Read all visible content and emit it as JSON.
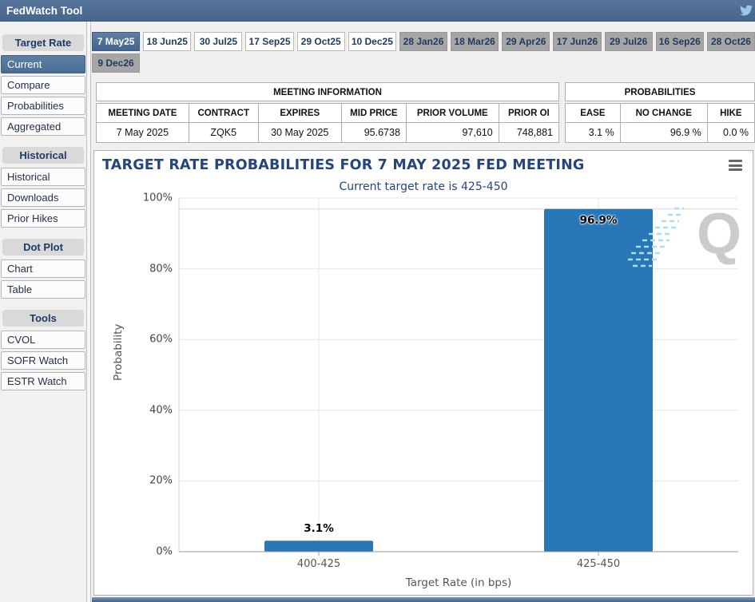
{
  "topbar": {
    "title": "FedWatch Tool",
    "twitter_icon": "twitter-bird"
  },
  "sidebar": {
    "sections": [
      {
        "header": "Target Rate",
        "items": [
          {
            "label": "Current",
            "selected": true
          },
          {
            "label": "Compare",
            "selected": false
          },
          {
            "label": "Probabilities",
            "selected": false
          },
          {
            "label": "Aggregated",
            "selected": false
          }
        ]
      },
      {
        "header": "Historical",
        "items": [
          {
            "label": "Historical",
            "selected": false
          },
          {
            "label": "Downloads",
            "selected": false
          },
          {
            "label": "Prior Hikes",
            "selected": false
          }
        ]
      },
      {
        "header": "Dot Plot",
        "items": [
          {
            "label": "Chart",
            "selected": false
          },
          {
            "label": "Table",
            "selected": false
          }
        ]
      },
      {
        "header": "Tools",
        "items": [
          {
            "label": "CVOL",
            "selected": false
          },
          {
            "label": "SOFR Watch",
            "selected": false
          },
          {
            "label": "ESTR Watch",
            "selected": false
          }
        ]
      }
    ]
  },
  "tabs": {
    "row1": [
      {
        "label": "7 May25",
        "state": "selected"
      },
      {
        "label": "18 Jun25",
        "state": "white"
      },
      {
        "label": "30 Jul25",
        "state": "white"
      },
      {
        "label": "17 Sep25",
        "state": "white"
      },
      {
        "label": "29 Oct25",
        "state": "white"
      },
      {
        "label": "10 Dec25",
        "state": "white"
      },
      {
        "label": "28 Jan26",
        "state": "gray"
      },
      {
        "label": "18 Mar26",
        "state": "gray"
      },
      {
        "label": "29 Apr26",
        "state": "gray"
      },
      {
        "label": "17 Jun26",
        "state": "gray"
      },
      {
        "label": "29 Jul26",
        "state": "gray"
      },
      {
        "label": "16 Sep26",
        "state": "gray"
      },
      {
        "label": "28 Oct26",
        "state": "gray"
      }
    ],
    "row2": [
      {
        "label": "9 Dec26",
        "state": "gray"
      }
    ]
  },
  "meeting_info": {
    "title": "MEETING INFORMATION",
    "columns": [
      "MEETING DATE",
      "CONTRACT",
      "EXPIRES",
      "MID PRICE",
      "PRIOR VOLUME",
      "PRIOR OI"
    ],
    "values": [
      "7 May 2025",
      "ZQK5",
      "30 May 2025",
      "95.6738",
      "97,610",
      "748,881"
    ],
    "align": [
      "c",
      "c",
      "c",
      "r",
      "r",
      "r"
    ],
    "col_widths": [
      "20%",
      "15%",
      "18%",
      "14%",
      "20%",
      "13%"
    ]
  },
  "probabilities": {
    "title": "PROBABILITIES",
    "columns": [
      "EASE",
      "NO CHANGE",
      "HIKE"
    ],
    "values": [
      "3.1 %",
      "96.9 %",
      "0.0 %"
    ],
    "align": [
      "r",
      "r",
      "r"
    ],
    "col_widths": [
      "29%",
      "46%",
      "25%"
    ]
  },
  "chart_data": {
    "type": "bar",
    "title": "TARGET RATE PROBABILITIES FOR 7 MAY 2025 FED MEETING",
    "subtitle": "Current target rate is 425-450",
    "categories": [
      "400-425",
      "425-450"
    ],
    "values": [
      3.1,
      96.9
    ],
    "bar_labels": [
      "3.1%",
      "96.9%"
    ],
    "xlabel": "Target Rate (in bps)",
    "ylabel": "Probability",
    "ylim": [
      0,
      100
    ],
    "ytick_step": 20,
    "ytick_labels": [
      "0%",
      "20%",
      "40%",
      "60%",
      "80%",
      "100%"
    ],
    "marker_line_pct": 96.9,
    "grid": true,
    "legend": "none",
    "bar_color": "#2878b8",
    "watermark": "Q"
  },
  "colors": {
    "accent_blue": "#4a6d94",
    "topbar_blue": "#47668d",
    "navy_text": "#24457e",
    "bar_blue": "#2878b8",
    "gray_tab": "#a6a6a6"
  }
}
